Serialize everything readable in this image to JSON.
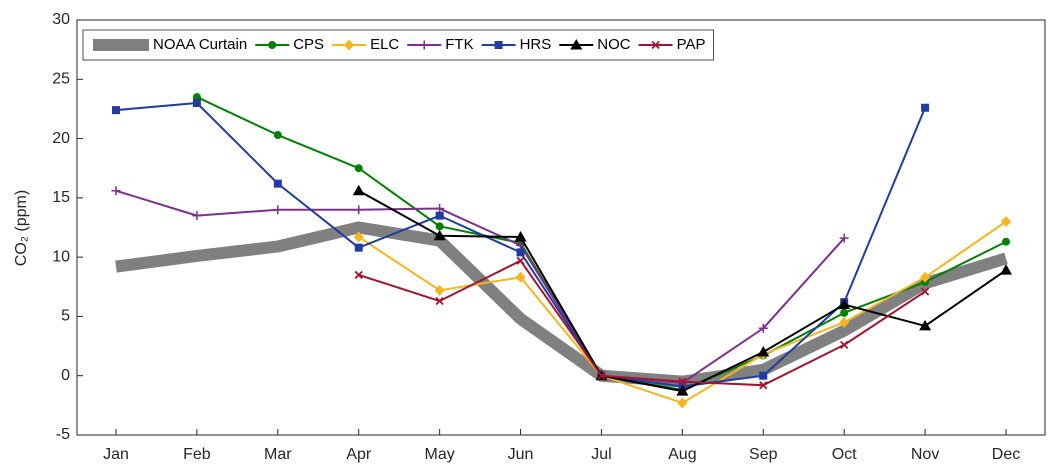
{
  "chart_data": {
    "type": "line",
    "ylabel": "CO₂ (ppm)",
    "categories": [
      "Jan",
      "Feb",
      "Mar",
      "Apr",
      "May",
      "Jun",
      "Jul",
      "Aug",
      "Sep",
      "Oct",
      "Nov",
      "Dec"
    ],
    "ylim": [
      -5,
      30
    ],
    "yticks": [
      -5,
      0,
      5,
      10,
      15,
      20,
      25,
      30
    ],
    "grid": false,
    "legend": "top-left",
    "series": [
      {
        "name": "NOAA Curtain",
        "color": "#808080",
        "marker": "none",
        "values": [
          9.2,
          10.1,
          10.9,
          12.5,
          11.4,
          4.8,
          0,
          -0.5,
          0.5,
          3.8,
          7.8,
          9.9
        ]
      },
      {
        "name": "CPS",
        "color": "#008000",
        "marker": "circle",
        "values": [
          null,
          23.5,
          20.3,
          17.5,
          12.6,
          11.2,
          0,
          -1.2,
          1.7,
          5.3,
          7.9,
          11.3
        ]
      },
      {
        "name": "ELC",
        "color": "#f5b520",
        "marker": "diamond",
        "values": [
          null,
          null,
          null,
          11.7,
          7.2,
          8.3,
          0,
          -2.3,
          1.8,
          4.5,
          8.3,
          13.0
        ]
      },
      {
        "name": "FTK",
        "color": "#7e2f8e",
        "marker": "plus",
        "values": [
          15.6,
          13.5,
          14.0,
          14.0,
          14.1,
          11.0,
          0,
          -0.6,
          4.0,
          11.6,
          null,
          null
        ]
      },
      {
        "name": "HRS",
        "color": "#203ca0",
        "marker": "square",
        "values": [
          22.4,
          23.0,
          16.2,
          10.8,
          13.5,
          10.4,
          0,
          -0.9,
          0,
          6.2,
          22.6,
          null
        ]
      },
      {
        "name": "NOC",
        "color": "#000000",
        "marker": "triangle",
        "values": [
          null,
          null,
          null,
          15.6,
          11.8,
          11.7,
          0,
          -1.3,
          2.0,
          6.0,
          4.2,
          8.9
        ]
      },
      {
        "name": "PAP",
        "color": "#a2142f",
        "marker": "x",
        "values": [
          null,
          null,
          null,
          8.5,
          6.3,
          9.7,
          0,
          -0.5,
          -0.8,
          2.6,
          7.1,
          null
        ]
      }
    ]
  }
}
